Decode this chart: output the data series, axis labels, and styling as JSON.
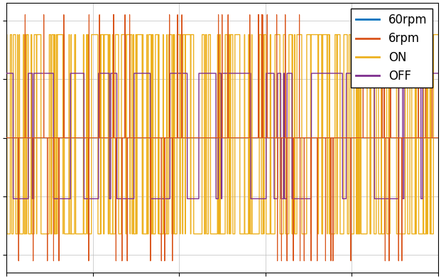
{
  "title": "",
  "xlabel": "",
  "ylabel": "",
  "legend_labels": [
    "60rpm",
    "6rpm",
    "ON",
    "OFF"
  ],
  "colors": {
    "60rpm": "#0072BD",
    "6rpm": "#D95319",
    "ON": "#EDB120",
    "OFF": "#7E2F8E"
  },
  "background_color": "#FFFFFF",
  "seed": 42,
  "n_samples": 8000,
  "legend_fontsize": 12,
  "legend_loc": "upper right",
  "on_high": 0.88,
  "on_low": -0.82,
  "off_high": 0.55,
  "off_low": -0.52,
  "rpm6_spike_high": 1.05,
  "rpm6_spike_low": -1.05
}
